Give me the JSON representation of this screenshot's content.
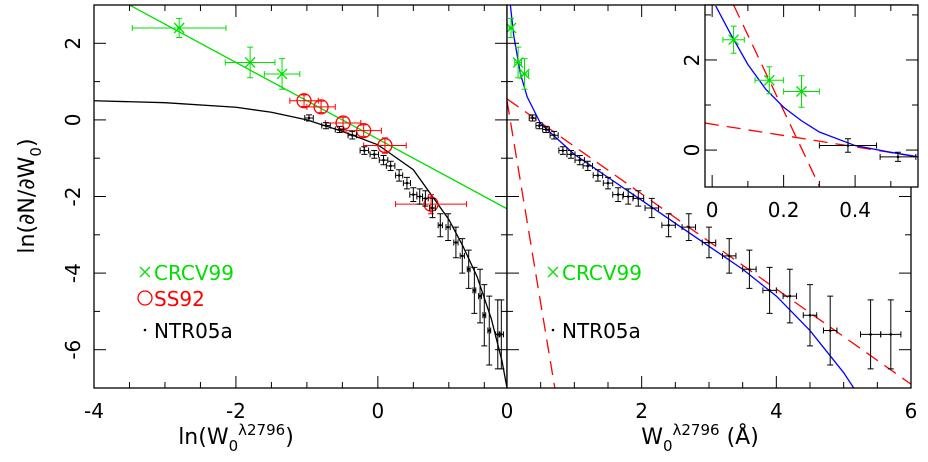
{
  "chart_data": [
    {
      "type": "scatter",
      "x_label": [
        {
          "text": "ln(W"
        },
        {
          "text": "0",
          "script": "sub"
        },
        {
          "text": "λ2796",
          "script": "sup"
        },
        {
          "text": ")"
        }
      ],
      "y_label": [
        {
          "text": "ln(∂N/∂W"
        },
        {
          "text": "0",
          "script": "sub"
        },
        {
          "text": ")"
        }
      ],
      "xlim": [
        -4,
        1.82
      ],
      "ylim": [
        -7,
        3
      ],
      "xticks": [
        -4,
        -2,
        0
      ],
      "yticks": [
        -6,
        -4,
        -2,
        0,
        2
      ],
      "xminor": [
        -3.5,
        -3,
        -2.5,
        -1.5,
        -1,
        -0.5,
        0.5,
        1,
        1.5
      ],
      "yminor": [
        -5,
        -3,
        -1,
        1
      ],
      "ytick_labels": true,
      "series": [
        {
          "kind": "line",
          "color": "#00e000",
          "x": [
            -4,
            1.82
          ],
          "values": [
            3.5,
            -2.32
          ]
        },
        {
          "kind": "line",
          "color": "#000000",
          "x": [
            -4,
            -3,
            -2,
            -1.5,
            -1,
            -0.5,
            0,
            0.5,
            1,
            1.2,
            1.4,
            1.6,
            1.75,
            1.82
          ],
          "values": [
            0.5,
            0.45,
            0.33,
            0.2,
            0.0,
            -0.3,
            -0.65,
            -1.3,
            -2.6,
            -3.3,
            -4.1,
            -5.2,
            -6.3,
            -7
          ]
        },
        {
          "kind": "points",
          "name": "CRCV99",
          "marker": "cross",
          "color": "#00e000",
          "legend": true,
          "x": [
            -2.8,
            -1.8,
            -1.35
          ],
          "values": [
            2.4,
            1.5,
            1.2
          ],
          "xerr": [
            0.66,
            0.35,
            0.25
          ],
          "yerr": [
            0.25,
            0.4,
            0.4
          ]
        },
        {
          "kind": "points",
          "name": "SS92",
          "marker": "circle",
          "color": "#ff0000",
          "legend": true,
          "x": [
            -1.04,
            -0.8,
            -0.49,
            -0.2,
            0.1,
            0.75
          ],
          "values": [
            0.5,
            0.34,
            -0.08,
            -0.28,
            -0.67,
            -2.2
          ],
          "xerr": [
            0.2,
            0.2,
            0.25,
            0.25,
            0.3,
            0.5
          ],
          "yerr": [
            0.15,
            0.15,
            0.15,
            0.15,
            0.2,
            0.25
          ]
        },
        {
          "kind": "points",
          "name": "NTR05a",
          "marker": "dot",
          "color": "#000000",
          "legend": true,
          "x": [
            -0.97,
            -0.73,
            -0.54,
            -0.36,
            -0.19,
            -0.05,
            0.08,
            0.18,
            0.3,
            0.41,
            0.5,
            0.59,
            0.67,
            0.77,
            0.88,
            0.99,
            1.1,
            1.19,
            1.28,
            1.36,
            1.44,
            1.5,
            1.57,
            1.69,
            1.74
          ],
          "values": [
            0.05,
            -0.15,
            -0.25,
            -0.4,
            -0.8,
            -0.9,
            -1.05,
            -1.2,
            -1.45,
            -1.65,
            -1.95,
            -2.0,
            -2.05,
            -2.3,
            -2.75,
            -2.8,
            -3.2,
            -3.55,
            -3.9,
            -4.45,
            -4.6,
            -5.1,
            -5.5,
            -5.6,
            -5.6
          ],
          "xerr": [
            0.06,
            0.06,
            0.06,
            0.06,
            0.06,
            0.06,
            0.06,
            0.06,
            0.05,
            0.05,
            0.05,
            0.04,
            0.04,
            0.04,
            0.03,
            0.03,
            0.03,
            0.03,
            0.02,
            0.02,
            0.02,
            0.02,
            0.02,
            0.03,
            0.03
          ],
          "yerr": [
            0.08,
            0.08,
            0.08,
            0.1,
            0.1,
            0.1,
            0.12,
            0.12,
            0.15,
            0.15,
            0.18,
            0.2,
            0.2,
            0.25,
            0.3,
            0.35,
            0.4,
            0.45,
            0.5,
            0.6,
            0.7,
            0.8,
            0.9,
            0.9,
            0.9
          ]
        }
      ]
    },
    {
      "type": "scatter",
      "x_label": [
        {
          "text": "W"
        },
        {
          "text": "0",
          "script": "sub"
        },
        {
          "text": "λ2796",
          "script": "sup"
        },
        {
          "text": " (Å)"
        }
      ],
      "xlim": [
        0,
        6
      ],
      "ylim": [
        -7,
        3
      ],
      "xticks": [
        0,
        2,
        4,
        6
      ],
      "yticks": [
        -6,
        -4,
        -2,
        0,
        2
      ],
      "xminor": [
        0.5,
        1,
        1.5,
        2.5,
        3,
        3.5,
        4.5,
        5,
        5.5
      ],
      "yminor": [
        -5,
        -3,
        -1,
        1
      ],
      "ytick_labels": false,
      "series": [
        {
          "kind": "line",
          "color": "#ff0000",
          "dash": true,
          "x": [
            0,
            6
          ],
          "values": [
            0.55,
            -6.9
          ]
        },
        {
          "kind": "line",
          "color": "#ff0000",
          "dash": true,
          "x": [
            0,
            0.71
          ],
          "values": [
            0.5,
            -7
          ]
        },
        {
          "kind": "line",
          "color": "#0000ff",
          "x": [
            0.05,
            0.1,
            0.2,
            0.3,
            0.5,
            1,
            1.5,
            2,
            2.5,
            3,
            3.5,
            4,
            4.5,
            5,
            5.15
          ],
          "values": [
            3,
            2.2,
            1.2,
            0.6,
            -0.1,
            -0.9,
            -1.5,
            -2.1,
            -2.7,
            -3.3,
            -3.9,
            -4.6,
            -5.5,
            -6.6,
            -7
          ]
        },
        {
          "kind": "points",
          "name": "CRCV99",
          "marker": "cross",
          "color": "#00e000",
          "legend": true,
          "x": [
            0.06,
            0.165,
            0.26
          ],
          "values": [
            2.4,
            1.5,
            1.2
          ],
          "xerr": [
            0.03,
            0.05,
            0.06
          ],
          "yerr": [
            0.25,
            0.4,
            0.4
          ]
        },
        {
          "kind": "points",
          "name": "NTR05a",
          "marker": "dot",
          "color": "#000000",
          "legend": true,
          "x": [
            0.38,
            0.48,
            0.58,
            0.7,
            0.83,
            0.95,
            1.08,
            1.2,
            1.35,
            1.5,
            1.65,
            1.8,
            1.95,
            2.15,
            2.4,
            2.7,
            3.0,
            3.3,
            3.6,
            3.9,
            4.2,
            4.5,
            4.8,
            5.4,
            5.7
          ],
          "values": [
            0.05,
            -0.15,
            -0.25,
            -0.4,
            -0.8,
            -0.9,
            -1.05,
            -1.2,
            -1.45,
            -1.65,
            -1.95,
            -2.0,
            -2.05,
            -2.3,
            -2.75,
            -2.8,
            -3.2,
            -3.55,
            -3.9,
            -4.45,
            -4.6,
            -5.1,
            -5.5,
            -5.6,
            -5.6
          ],
          "xerr": [
            0.05,
            0.05,
            0.05,
            0.06,
            0.06,
            0.06,
            0.07,
            0.07,
            0.07,
            0.07,
            0.08,
            0.08,
            0.08,
            0.1,
            0.1,
            0.1,
            0.1,
            0.1,
            0.1,
            0.1,
            0.1,
            0.1,
            0.1,
            0.15,
            0.15
          ],
          "yerr": [
            0.08,
            0.08,
            0.08,
            0.1,
            0.1,
            0.1,
            0.12,
            0.12,
            0.15,
            0.15,
            0.18,
            0.2,
            0.2,
            0.25,
            0.3,
            0.35,
            0.4,
            0.45,
            0.5,
            0.6,
            0.7,
            0.8,
            0.9,
            0.9,
            0.9
          ]
        }
      ]
    },
    {
      "type": "scatter",
      "xlim": [
        -0.02,
        0.576
      ],
      "ylim": [
        -0.82,
        3.22
      ],
      "xticks": [
        0,
        0.2,
        0.4
      ],
      "yticks": [
        0,
        2
      ],
      "xminor": [
        0.1,
        0.3,
        0.5
      ],
      "yminor": [
        1,
        3
      ],
      "ytick_labels": true,
      "series": [
        {
          "kind": "line",
          "color": "#ff0000",
          "dash": true,
          "x": [
            -0.02,
            0.576
          ],
          "values": [
            0.6,
            -0.15
          ]
        },
        {
          "kind": "line",
          "color": "#ff0000",
          "dash": true,
          "x": [
            0.06,
            0.3
          ],
          "values": [
            3.22,
            -0.8
          ]
        },
        {
          "kind": "line",
          "color": "#0000ff",
          "x": [
            0.01,
            0.05,
            0.1,
            0.15,
            0.2,
            0.25,
            0.3,
            0.4,
            0.5,
            0.576
          ],
          "values": [
            3.2,
            2.6,
            1.9,
            1.35,
            0.95,
            0.65,
            0.4,
            0.1,
            -0.05,
            -0.15
          ]
        },
        {
          "kind": "points",
          "marker": "cross",
          "color": "#00e000",
          "x": [
            0.06,
            0.16,
            0.25
          ],
          "values": [
            2.45,
            1.55,
            1.3
          ],
          "xerr": [
            0.03,
            0.04,
            0.05
          ],
          "yerr": [
            0.3,
            0.3,
            0.35
          ]
        },
        {
          "kind": "points",
          "marker": "dot",
          "color": "#000000",
          "x": [
            0.38,
            0.52
          ],
          "values": [
            0.1,
            -0.15
          ],
          "xerr": [
            0.08,
            0.05
          ],
          "yerr": [
            0.15,
            0.1
          ]
        }
      ]
    }
  ]
}
